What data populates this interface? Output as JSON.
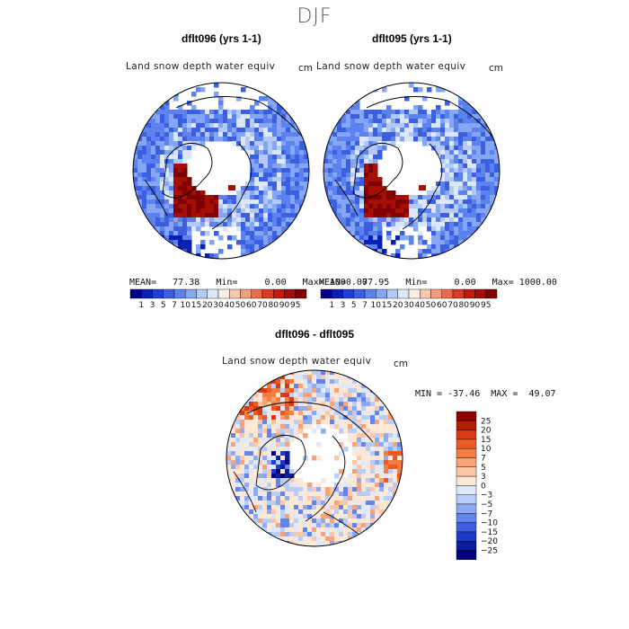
{
  "figure": {
    "title": "DJF"
  },
  "panels": [
    {
      "case_title": "dflt096 (yrs 1-1)",
      "variable": "Land snow depth water equiv",
      "units": "cm",
      "stats": "MEAN=   77.38   Min=     0.00   Max= 1000.00"
    },
    {
      "case_title": "dflt095 (yrs 1-1)",
      "variable": "Land snow depth water equiv",
      "units": "cm",
      "stats": "MEAN=   77.95   Min=     0.00   Max= 1000.00"
    }
  ],
  "diff_panel": {
    "case_title": "dflt096 - dflt095",
    "variable": "Land snow depth water equiv",
    "units": "cm",
    "stats": "MIN = -37.46  MAX =  49.07"
  },
  "chart_data": [
    {
      "type": "heatmap",
      "projection": "north-polar-stereographic",
      "title": "dflt096 (yrs 1-1)",
      "subtitle": "Land snow depth water equiv",
      "units": "cm",
      "stats": {
        "mean": 77.38,
        "min": 0.0,
        "max": 1000.0
      },
      "colorbar": {
        "orientation": "horizontal",
        "tick_labels": [
          "1",
          "3",
          "5",
          "7",
          "10",
          "15",
          "20",
          "30",
          "40",
          "50",
          "60",
          "70",
          "80",
          "90",
          "95"
        ],
        "colors": [
          "#00008b",
          "#0a1fb4",
          "#1f3ed3",
          "#3b5fe0",
          "#5b82ee",
          "#85a6f4",
          "#b3c9f7",
          "#dde7fb",
          "#fdeee3",
          "#f8c9b1",
          "#f29e7e",
          "#ea6d4d",
          "#dc3c22",
          "#c41a0c",
          "#a50f04",
          "#800000"
        ]
      }
    },
    {
      "type": "heatmap",
      "projection": "north-polar-stereographic",
      "title": "dflt095 (yrs 1-1)",
      "subtitle": "Land snow depth water equiv",
      "units": "cm",
      "stats": {
        "mean": 77.95,
        "min": 0.0,
        "max": 1000.0
      },
      "colorbar": {
        "orientation": "horizontal",
        "tick_labels": [
          "1",
          "3",
          "5",
          "7",
          "10",
          "15",
          "20",
          "30",
          "40",
          "50",
          "60",
          "70",
          "80",
          "90",
          "95"
        ],
        "colors": [
          "#00008b",
          "#0a1fb4",
          "#1f3ed3",
          "#3b5fe0",
          "#5b82ee",
          "#85a6f4",
          "#b3c9f7",
          "#dde7fb",
          "#fdeee3",
          "#f8c9b1",
          "#f29e7e",
          "#ea6d4d",
          "#dc3c22",
          "#c41a0c",
          "#a50f04",
          "#800000"
        ]
      }
    },
    {
      "type": "heatmap",
      "projection": "north-polar-stereographic",
      "title": "dflt096 - dflt095",
      "subtitle": "Land snow depth water equiv",
      "units": "cm",
      "stats": {
        "min": -37.46,
        "max": 49.07
      },
      "colorbar": {
        "orientation": "vertical",
        "tick_labels": [
          "25",
          "20",
          "15",
          "10",
          "7",
          "5",
          "3",
          "0",
          "−3",
          "−5",
          "−7",
          "−10",
          "−15",
          "−20",
          "−25"
        ],
        "colors": [
          "#8b0000",
          "#b81c05",
          "#d93a12",
          "#ea5a23",
          "#f47d3f",
          "#f8a275",
          "#fbc7a8",
          "#fde7d6",
          "#dfe9fb",
          "#b8cdf7",
          "#8eaaf2",
          "#6384eb",
          "#3d5ee0",
          "#1d3bc9",
          "#0a1e9e",
          "#000080"
        ]
      }
    }
  ]
}
